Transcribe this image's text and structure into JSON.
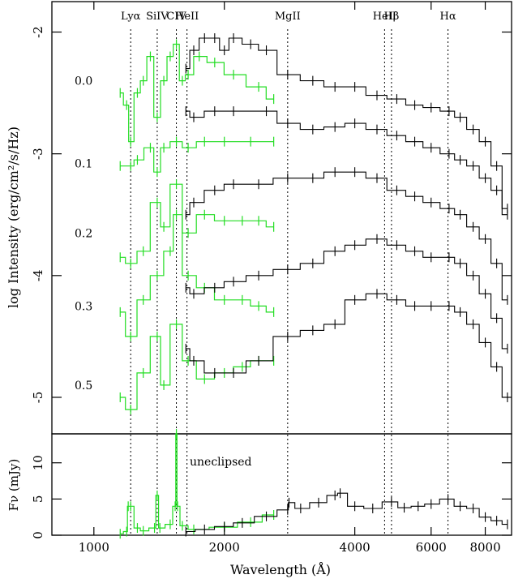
{
  "chart_data": [
    {
      "type": "line",
      "panel": "top",
      "ylabel": "log Intensity (erg/cm²/s/Hz)",
      "y_ticks": [
        -2,
        -3,
        -4,
        -5
      ],
      "ylim": [
        -5.3,
        -1.75
      ],
      "x_scale": "log",
      "xlim": [
        800,
        9200
      ],
      "phase_labels": [
        {
          "label": "0.0",
          "y": -2.4
        },
        {
          "label": "0.1",
          "y": -3.08
        },
        {
          "label": "0.2",
          "y": -3.65
        },
        {
          "label": "0.3",
          "y": -4.25
        },
        {
          "label": "0.5",
          "y": -4.9
        }
      ],
      "line_markers": [
        {
          "label": "Lyα",
          "wavelength": 1216
        },
        {
          "label": "SiIV",
          "wavelength": 1400
        },
        {
          "label": "CIV",
          "wavelength": 1550
        },
        {
          "label": "HeII",
          "wavelength": 1640
        },
        {
          "label": "MgII",
          "wavelength": 2800
        },
        {
          "label": "HeII",
          "wavelength": 4686
        },
        {
          "label": "Hβ",
          "wavelength": 4861
        },
        {
          "label": "Hα",
          "wavelength": 6563
        }
      ],
      "series": [
        {
          "color": "#22dd22",
          "x": [
            1150,
            1190,
            1216,
            1260,
            1300,
            1350,
            1400,
            1450,
            1500,
            1550,
            1600,
            1650,
            1750,
            1900,
            2100,
            2400,
            2600
          ],
          "y": [
            -2.5,
            -2.6,
            -2.9,
            -2.5,
            -2.4,
            -2.2,
            -2.7,
            -2.4,
            -2.2,
            -2.1,
            -2.4,
            -2.35,
            -2.2,
            -2.25,
            -2.35,
            -2.45,
            -2.55
          ]
        },
        {
          "color": "#000000",
          "x": [
            1630,
            1700,
            1800,
            1900,
            2000,
            2100,
            2300,
            2500,
            2800,
            3200,
            3600,
            4000,
            4500,
            5000,
            5500,
            6000,
            6600,
            7000,
            7500,
            8000,
            8500,
            9000
          ],
          "y": [
            -2.3,
            -2.15,
            -2.05,
            -2.05,
            -2.15,
            -2.05,
            -2.1,
            -2.15,
            -2.35,
            -2.4,
            -2.45,
            -2.45,
            -2.52,
            -2.55,
            -2.6,
            -2.62,
            -2.65,
            -2.7,
            -2.8,
            -2.9,
            -3.1,
            -3.45
          ]
        },
        {
          "color": "#22dd22",
          "x": [
            1150,
            1216,
            1260,
            1350,
            1400,
            1450,
            1550,
            1650,
            1800,
            2000,
            2300,
            2600
          ],
          "y": [
            -3.1,
            -3.1,
            -3.05,
            -2.95,
            -3.15,
            -2.95,
            -2.9,
            -2.95,
            -2.9,
            -2.9,
            -2.9,
            -2.9
          ]
        },
        {
          "color": "#000000",
          "x": [
            1630,
            1700,
            1900,
            2100,
            2500,
            2800,
            3200,
            3600,
            4000,
            4500,
            5000,
            5500,
            6000,
            6600,
            7000,
            7500,
            8000,
            8500,
            9000
          ],
          "y": [
            -2.65,
            -2.7,
            -2.65,
            -2.65,
            -2.65,
            -2.75,
            -2.8,
            -2.78,
            -2.75,
            -2.8,
            -2.85,
            -2.9,
            -2.95,
            -3.0,
            -3.05,
            -3.1,
            -3.2,
            -3.3,
            -3.5
          ]
        },
        {
          "color": "#22dd22",
          "x": [
            1150,
            1216,
            1300,
            1400,
            1450,
            1550,
            1650,
            1800,
            2000,
            2200,
            2400,
            2600
          ],
          "y": [
            -3.85,
            -3.9,
            -3.8,
            -3.4,
            -3.6,
            -3.25,
            -3.65,
            -3.5,
            -3.55,
            -3.55,
            -3.55,
            -3.6
          ]
        },
        {
          "color": "#000000",
          "x": [
            1630,
            1700,
            1900,
            2100,
            2400,
            2800,
            3200,
            3600,
            4000,
            4500,
            5000,
            5500,
            6000,
            6600,
            7000,
            7500,
            8000,
            8500,
            9000
          ],
          "y": [
            -3.5,
            -3.4,
            -3.3,
            -3.25,
            -3.25,
            -3.2,
            -3.2,
            -3.15,
            -3.15,
            -3.2,
            -3.3,
            -3.35,
            -3.4,
            -3.45,
            -3.5,
            -3.6,
            -3.7,
            -3.9,
            -4.2
          ]
        },
        {
          "color": "#22dd22",
          "x": [
            1150,
            1216,
            1300,
            1400,
            1500,
            1550,
            1650,
            1800,
            2000,
            2200,
            2400,
            2600
          ],
          "y": [
            -4.3,
            -4.5,
            -4.2,
            -4.0,
            -3.8,
            -3.5,
            -4.0,
            -4.1,
            -4.2,
            -4.2,
            -4.25,
            -4.3
          ]
        },
        {
          "color": "#000000",
          "x": [
            1630,
            1700,
            1900,
            2100,
            2400,
            2800,
            3200,
            3600,
            4000,
            4500,
            5000,
            5500,
            6000,
            6600,
            7000,
            7500,
            8000,
            8500,
            9000
          ],
          "y": [
            -4.1,
            -4.15,
            -4.1,
            -4.05,
            -4.0,
            -3.95,
            -3.9,
            -3.8,
            -3.75,
            -3.7,
            -3.75,
            -3.8,
            -3.85,
            -3.85,
            -3.9,
            -4.0,
            -4.15,
            -4.35,
            -4.6
          ]
        },
        {
          "color": "#22dd22",
          "x": [
            1150,
            1216,
            1300,
            1400,
            1450,
            1550,
            1650,
            1800,
            2000,
            2200,
            2400,
            2600
          ],
          "y": [
            -5.0,
            -5.1,
            -4.8,
            -4.5,
            -4.9,
            -4.4,
            -4.7,
            -4.85,
            -4.8,
            -4.75,
            -4.7,
            -4.7
          ]
        },
        {
          "color": "#000000",
          "x": [
            1630,
            1700,
            1900,
            2100,
            2400,
            2800,
            3200,
            3600,
            4000,
            4500,
            5000,
            5500,
            6000,
            6600,
            7000,
            7500,
            8000,
            8500,
            9000
          ],
          "y": [
            -4.6,
            -4.7,
            -4.8,
            -4.8,
            -4.7,
            -4.5,
            -4.45,
            -4.4,
            -4.2,
            -4.15,
            -4.2,
            -4.25,
            -4.25,
            -4.25,
            -4.3,
            -4.4,
            -4.55,
            -4.75,
            -5.0
          ]
        }
      ]
    },
    {
      "type": "line",
      "panel": "bottom",
      "ylabel": "Fν (mJy)",
      "y_ticks": [
        0,
        5,
        10
      ],
      "ylim": [
        0,
        14
      ],
      "annotation": "uneclipsed",
      "xlabel": "Wavelength (Å)",
      "x_ticks": [
        1000,
        2000,
        4000,
        6000,
        8000
      ],
      "series": [
        {
          "color": "#22dd22",
          "x": [
            1150,
            1190,
            1200,
            1216,
            1260,
            1300,
            1380,
            1400,
            1420,
            1500,
            1540,
            1550,
            1560,
            1600,
            1700,
            2000,
            2300,
            2600
          ],
          "y": [
            0.2,
            0.5,
            4.0,
            4.0,
            1.0,
            0.6,
            1.0,
            5.5,
            1.0,
            1.5,
            4.0,
            14.0,
            4.0,
            1.3,
            0.8,
            1.1,
            1.8,
            2.8
          ]
        },
        {
          "color": "#000000",
          "x": [
            1630,
            1800,
            2000,
            2200,
            2500,
            2800,
            2820,
            3000,
            3300,
            3600,
            3700,
            4000,
            4400,
            4860,
            5200,
            5600,
            6000,
            6563,
            7000,
            7500,
            8000,
            8500,
            9000
          ],
          "y": [
            0.5,
            0.8,
            1.2,
            1.7,
            2.6,
            3.5,
            4.5,
            3.7,
            4.5,
            5.5,
            5.8,
            4.0,
            3.7,
            4.6,
            3.8,
            4.0,
            4.3,
            5.0,
            4.0,
            3.7,
            2.5,
            2.0,
            1.5
          ]
        }
      ]
    }
  ]
}
